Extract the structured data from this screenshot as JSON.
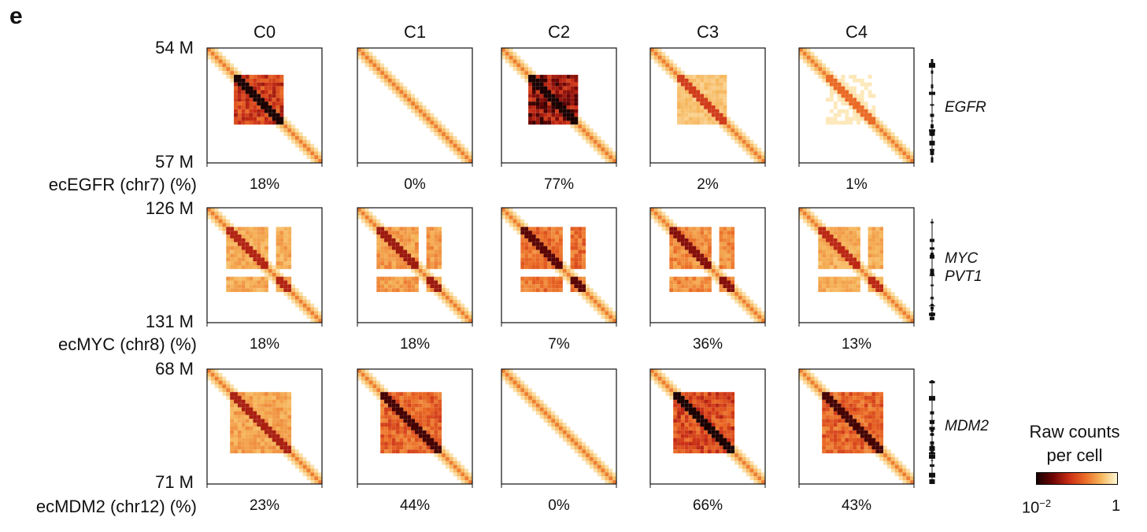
{
  "panel_label": "e",
  "chart_data": {
    "type": "heatmap",
    "columns": [
      "C0",
      "C1",
      "C2",
      "C3",
      "C4"
    ],
    "colorbar": {
      "title_line1": "Raw counts",
      "title_line2": "per cell",
      "min_base": "10",
      "min_exp": "−2",
      "max_label": "1",
      "colors": [
        "#1a0000",
        "#6e0404",
        "#c92d16",
        "#ea6a26",
        "#f6b55a",
        "#fff7d6"
      ]
    },
    "rows": [
      {
        "label": "ecEGFR (chr7) (%)",
        "start": "54 M",
        "end": "57 M",
        "genes": [
          "EGFR"
        ],
        "percentages": [
          "18%",
          "0%",
          "77%",
          "2%",
          "1%"
        ],
        "amplicon_intensity": [
          0.7,
          0.0,
          0.95,
          0.2,
          0.05
        ]
      },
      {
        "label": "ecMYC (chr8) (%)",
        "start": "126 M",
        "end": "131 M",
        "genes": [
          "MYC",
          "PVT1"
        ],
        "percentages": [
          "18%",
          "18%",
          "7%",
          "36%",
          "13%"
        ],
        "amplicon_intensity": [
          0.3,
          0.35,
          0.5,
          0.4,
          0.28
        ]
      },
      {
        "label": "ecMDM2 (chr12) (%)",
        "start": "68 M",
        "end": "71 M",
        "genes": [
          "MDM2"
        ],
        "percentages": [
          "23%",
          "44%",
          "0%",
          "66%",
          "43%"
        ],
        "amplicon_intensity": [
          0.32,
          0.55,
          0.0,
          0.65,
          0.55
        ]
      }
    ]
  }
}
